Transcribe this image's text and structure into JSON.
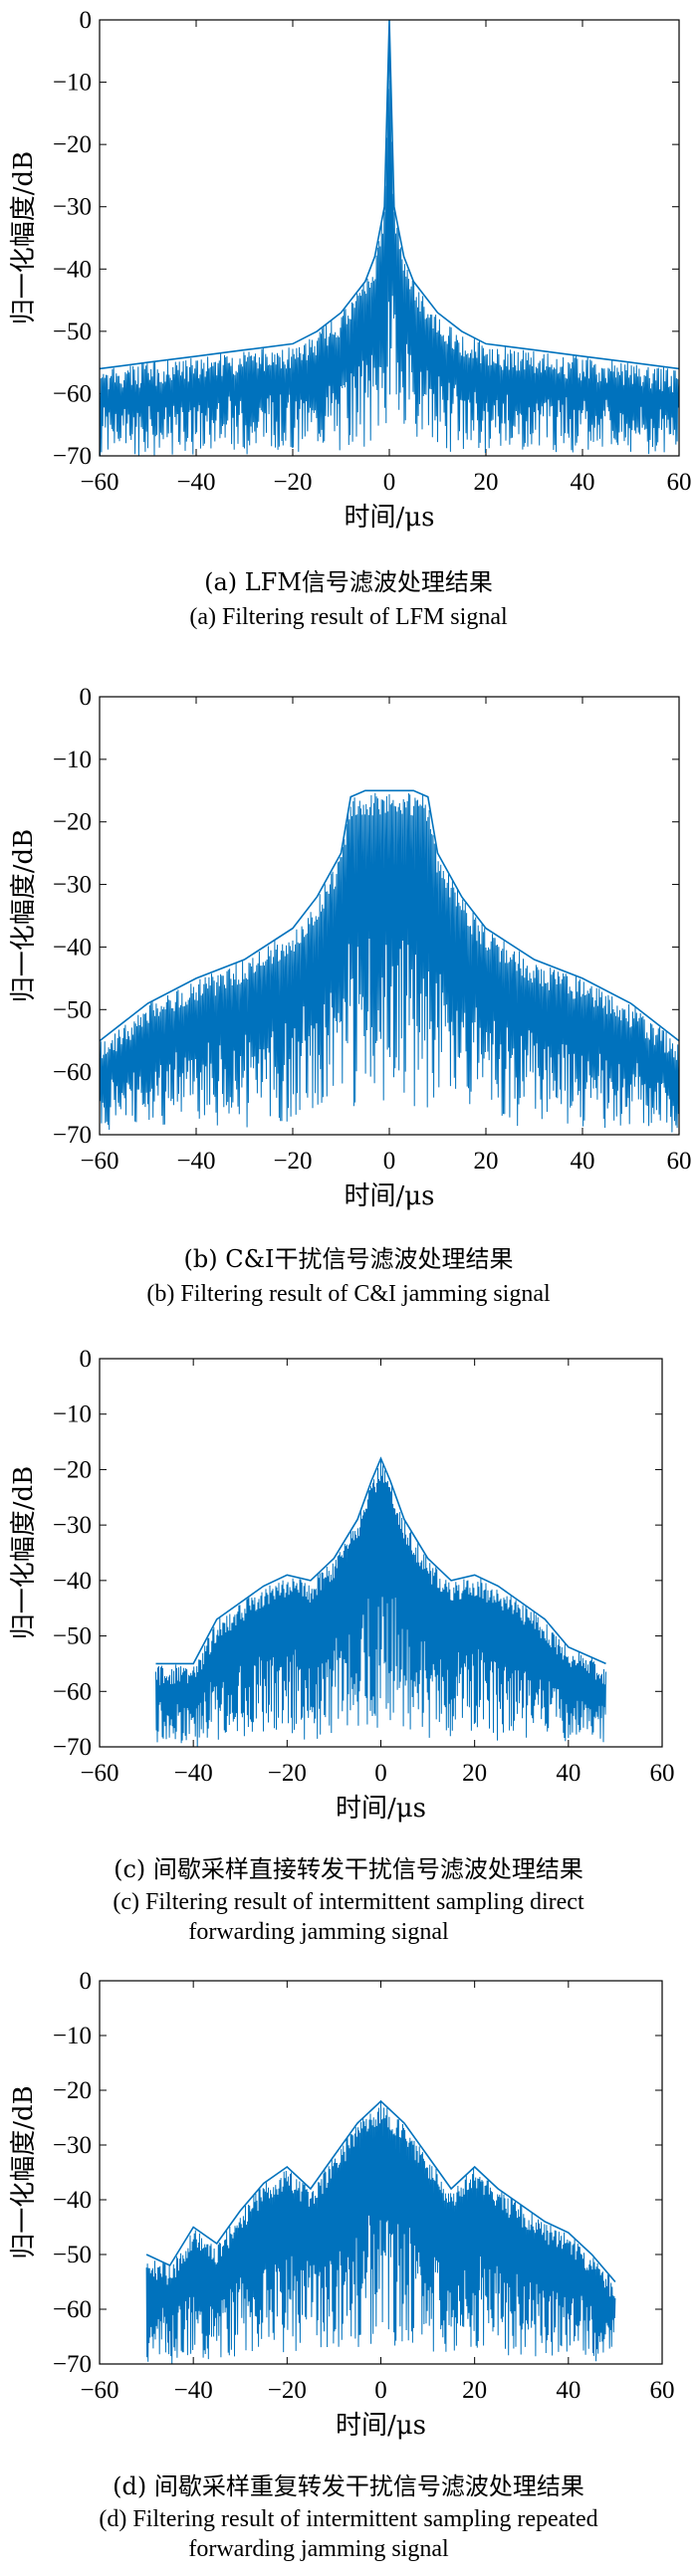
{
  "chart_data": [
    {
      "type": "line",
      "panel_id": "a",
      "ylabel": "归一化幅度/dB",
      "xlabel": "时间/μs",
      "xlim": [
        -60,
        60
      ],
      "ylim": [
        -70,
        0
      ],
      "xticks": [
        -60,
        -40,
        -20,
        0,
        20,
        40,
        60
      ],
      "yticks": [
        0,
        -10,
        -20,
        -30,
        -40,
        -50,
        -60,
        -70
      ],
      "grid": false,
      "color": "#0072BD",
      "caption_zh": "(a) LFM信号滤波处理结果",
      "caption_en": "(a) Filtering result of LFM signal",
      "x": [
        -60,
        -50,
        -40,
        -30,
        -20,
        -15,
        -10,
        -5,
        -3,
        -1,
        0,
        1,
        3,
        5,
        10,
        15,
        20,
        30,
        40,
        50,
        60
      ],
      "y": [
        -56,
        -55,
        -54,
        -53,
        -52,
        -50,
        -47,
        -42,
        -38,
        -30,
        0,
        -30,
        -38,
        -42,
        -47,
        -50,
        -52,
        -53,
        -54,
        -55,
        -56
      ]
    },
    {
      "type": "line",
      "panel_id": "b",
      "ylabel": "归一化幅度/dB",
      "xlabel": "时间/μs",
      "xlim": [
        -60,
        60
      ],
      "ylim": [
        -70,
        0
      ],
      "xticks": [
        -60,
        -40,
        -20,
        0,
        20,
        40,
        60
      ],
      "yticks": [
        0,
        -10,
        -20,
        -30,
        -40,
        -50,
        -60,
        -70
      ],
      "grid": false,
      "color": "#0072BD",
      "caption_zh": "(b) C&I干扰信号滤波处理结果",
      "caption_en": "(b) Filtering result of C&I jamming signal",
      "x": [
        -60,
        -50,
        -40,
        -30,
        -20,
        -15,
        -10,
        -8,
        -5,
        -3,
        0,
        3,
        5,
        8,
        10,
        15,
        20,
        30,
        40,
        50,
        60
      ],
      "y": [
        -55,
        -49,
        -45,
        -42,
        -37,
        -32,
        -25,
        -16,
        -15,
        -15,
        -15,
        -15,
        -15,
        -16,
        -25,
        -32,
        -37,
        -42,
        -45,
        -49,
        -55
      ]
    },
    {
      "type": "line",
      "panel_id": "c",
      "ylabel": "归一化幅度/dB",
      "xlabel": "时间/μs",
      "xlim": [
        -60,
        60
      ],
      "ylim": [
        -70,
        0
      ],
      "xticks": [
        -60,
        -40,
        -20,
        0,
        20,
        40,
        60
      ],
      "yticks": [
        0,
        -10,
        -20,
        -30,
        -40,
        -50,
        -60,
        -70
      ],
      "grid": false,
      "color": "#0072BD",
      "caption_zh": "(c) 间歇采样直接转发干扰信号滤波处理结果",
      "caption_en_1": "(c) Filtering result of intermittent sampling direct",
      "caption_en_2": "forwarding jamming signal",
      "x": [
        -48,
        -40,
        -35,
        -30,
        -25,
        -20,
        -15,
        -10,
        -5,
        -2,
        0,
        2,
        5,
        10,
        15,
        20,
        25,
        30,
        35,
        40,
        48
      ],
      "y": [
        -55,
        -55,
        -47,
        -44,
        -41,
        -39,
        -40,
        -36,
        -29,
        -22,
        -18,
        -22,
        -29,
        -36,
        -40,
        -39,
        -41,
        -44,
        -47,
        -52,
        -55
      ]
    },
    {
      "type": "line",
      "panel_id": "d",
      "ylabel": "归一化幅度/dB",
      "xlabel": "时间/μs",
      "xlim": [
        -60,
        60
      ],
      "ylim": [
        -70,
        0
      ],
      "xticks": [
        -60,
        -40,
        -20,
        0,
        20,
        40,
        60
      ],
      "yticks": [
        0,
        -10,
        -20,
        -30,
        -40,
        -50,
        -60,
        -70
      ],
      "grid": false,
      "color": "#0072BD",
      "caption_zh": "(d) 间歇采样重复转发干扰信号滤波处理结果",
      "caption_en_1": "(d) Filtering result of intermittent sampling repeated",
      "caption_en_2": "forwarding jamming signal",
      "x": [
        -50,
        -45,
        -40,
        -35,
        -30,
        -25,
        -20,
        -15,
        -10,
        -5,
        0,
        5,
        10,
        15,
        20,
        25,
        30,
        35,
        40,
        45,
        50
      ],
      "y": [
        -50,
        -52,
        -45,
        -48,
        -42,
        -37,
        -34,
        -38,
        -32,
        -26,
        -22,
        -26,
        -32,
        -38,
        -34,
        -38,
        -41,
        -44,
        -46,
        -50,
        -55
      ]
    }
  ]
}
